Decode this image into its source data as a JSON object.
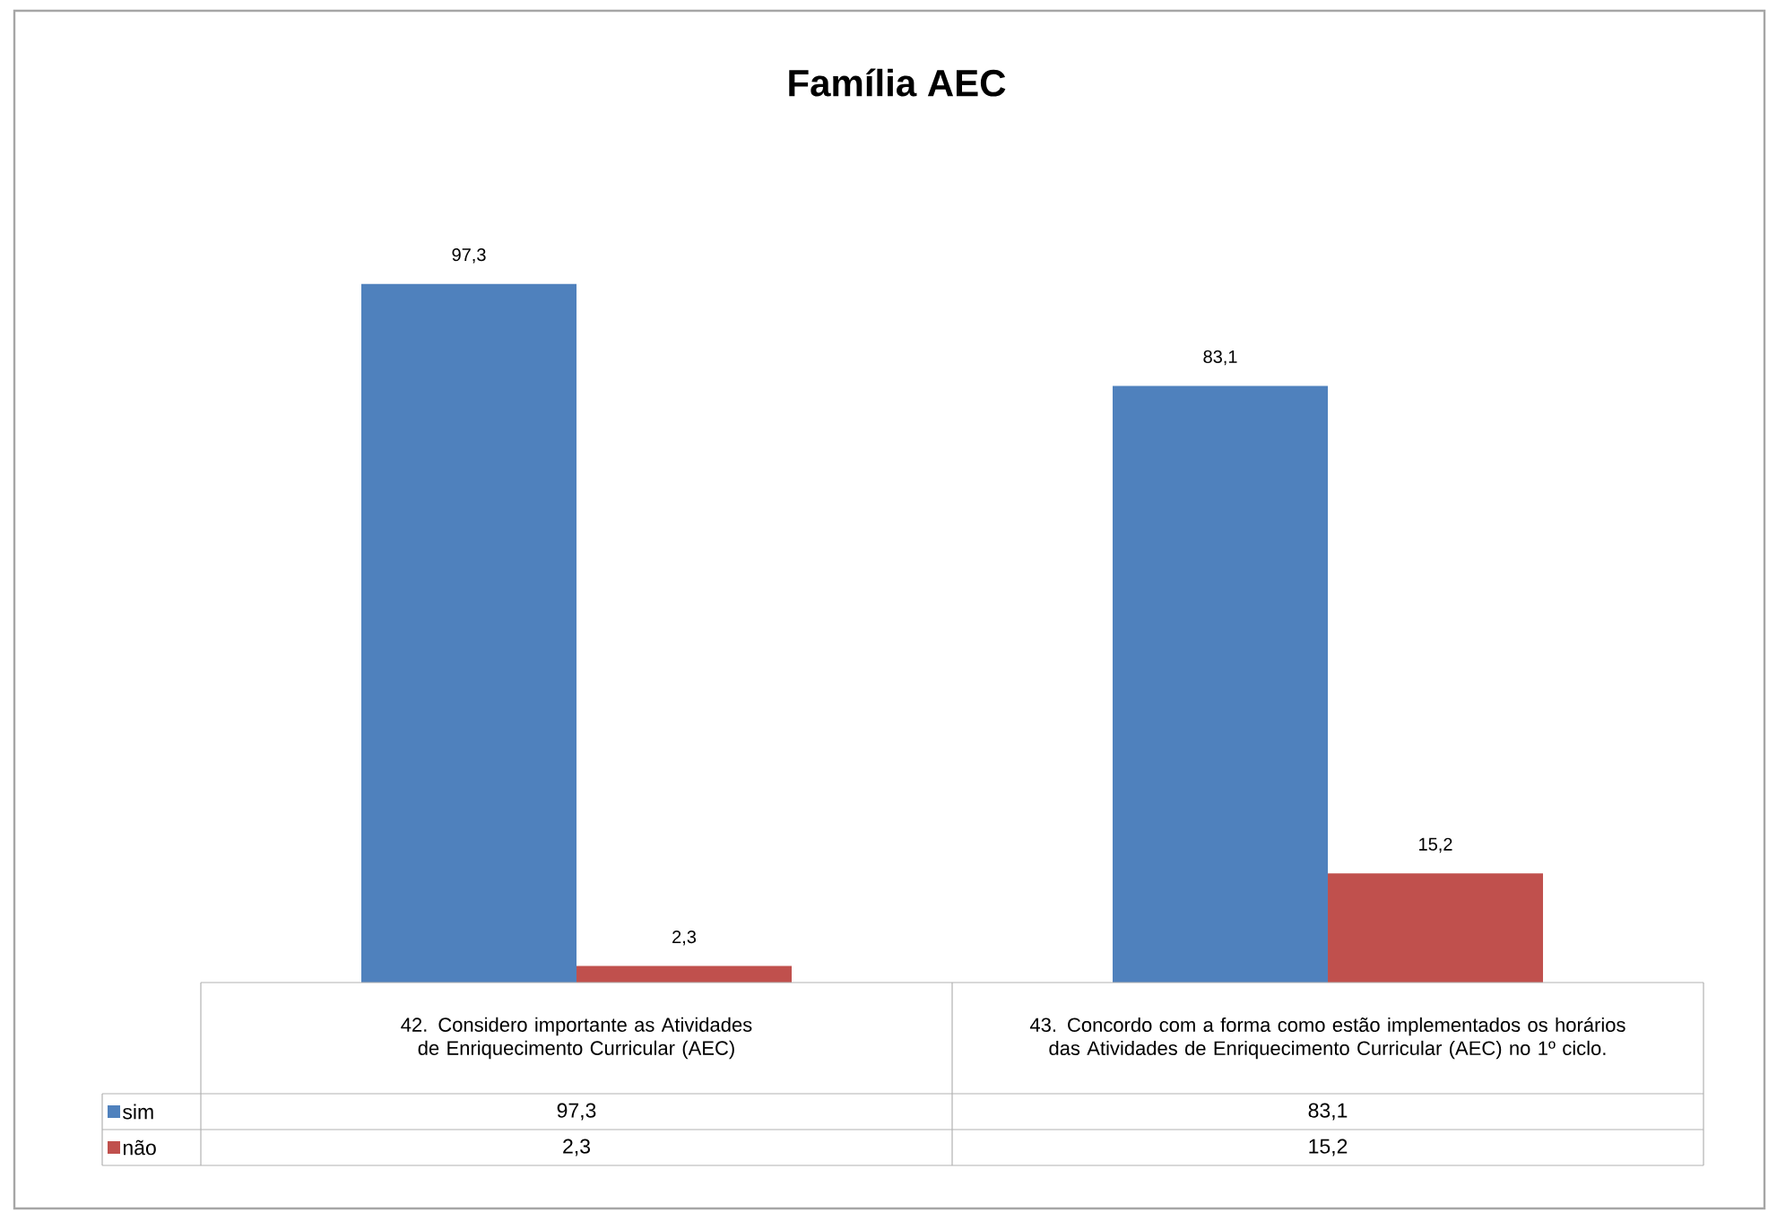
{
  "chart_data": {
    "type": "bar",
    "title": "Família AEC",
    "categories": [
      "42. Considero importante as Atividades de Enriquecimento Curricular (AEC)",
      "43. Concordo com a forma como estão implementados os horários das Atividades de Enriquecimento Curricular (AEC) no 1º ciclo."
    ],
    "series": [
      {
        "name": "sim",
        "color": "#4f81bd",
        "values": [
          97.3,
          83.1
        ],
        "value_labels": [
          "97,3",
          "83,1"
        ]
      },
      {
        "name": "não",
        "color": "#c0504d",
        "values": [
          2.3,
          15.2
        ],
        "value_labels": [
          "2,3",
          "15,2"
        ]
      }
    ],
    "legend": "bottom"
  }
}
